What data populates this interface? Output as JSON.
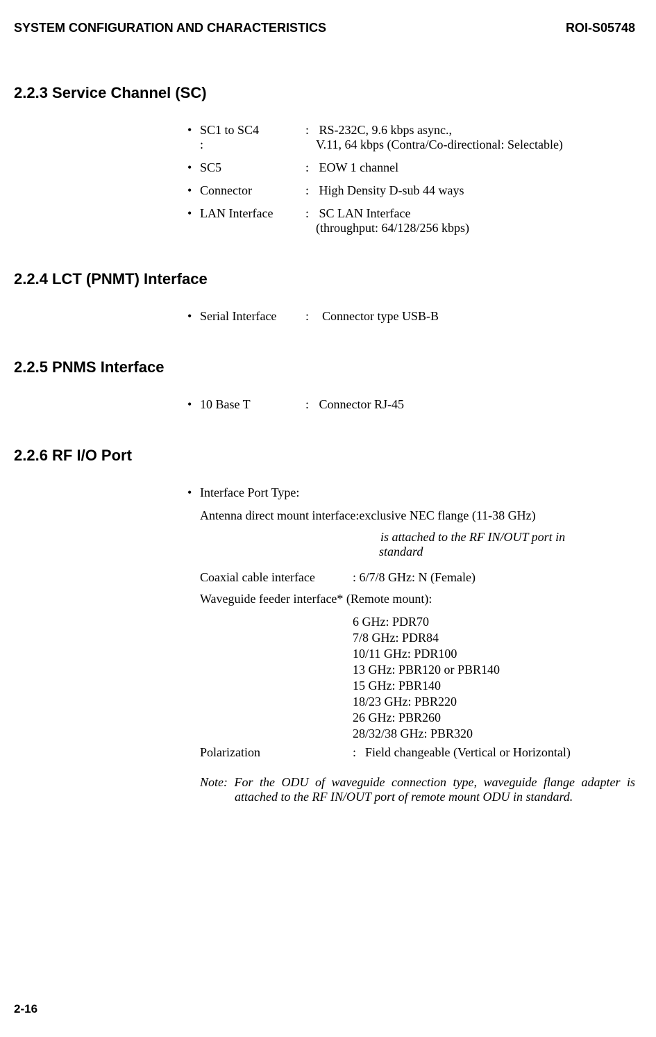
{
  "header": {
    "title": "SYSTEM CONFIGURATION AND CHARACTERISTICS",
    "docref": "ROI-S05748"
  },
  "section_223": {
    "heading": "2.2.3  Service Channel (SC)",
    "items": [
      {
        "label": "SC1 to SC4",
        "sublabel": ":",
        "value_line1": "RS-232C, 9.6 kbps async.,",
        "value_line2": "V.11, 64 kbps (Contra/Co-directional: Selectable)"
      },
      {
        "label": "SC5",
        "value": "EOW 1 channel"
      },
      {
        "label": "Connector",
        "value": "High Density D-sub 44 ways"
      },
      {
        "label": "LAN Interface",
        "value_line1": "SC LAN Interface",
        "value_line2": "(throughput: 64/128/256 kbps)"
      }
    ]
  },
  "section_224": {
    "heading": "2.2.4  LCT (PNMT) Interface",
    "label": "Serial Interface",
    "value": "Connector type USB-B"
  },
  "section_225": {
    "heading": "2.2.5  PNMS Interface",
    "label": "10 Base T",
    "value": "Connector RJ-45"
  },
  "section_226": {
    "heading": "2.2.6  RF I/O Port",
    "intro_label": "Interface Port Type:",
    "antenna_line": "Antenna direct mount interface:exclusive NEC flange (11-38 GHz)",
    "antenna_italic1": " is attached to the RF IN/OUT port in",
    "antenna_italic2": "standard",
    "coax_label": "Coaxial cable interface",
    "coax_value": ": 6/7/8 GHz: N (Female)",
    "waveguide_label": "Waveguide feeder interface* (Remote mount):",
    "waveguide_items": [
      "6 GHz: PDR70",
      "7/8 GHz: PDR84",
      "10/11 GHz: PDR100",
      "13 GHz: PBR120 or PBR140",
      "15 GHz: PBR140",
      "18/23 GHz: PBR220",
      "26 GHz: PBR260",
      "28/32/38 GHz: PBR320"
    ],
    "polar_label": "Polarization",
    "polar_colon": ":",
    "polar_value": "Field changeable (Vertical or Horizontal)",
    "note": "Note: For the ODU of waveguide connection type, waveguide flange adapter is attached to the RF IN/OUT port of remote mount ODU in standard."
  },
  "page_number": "2-16"
}
